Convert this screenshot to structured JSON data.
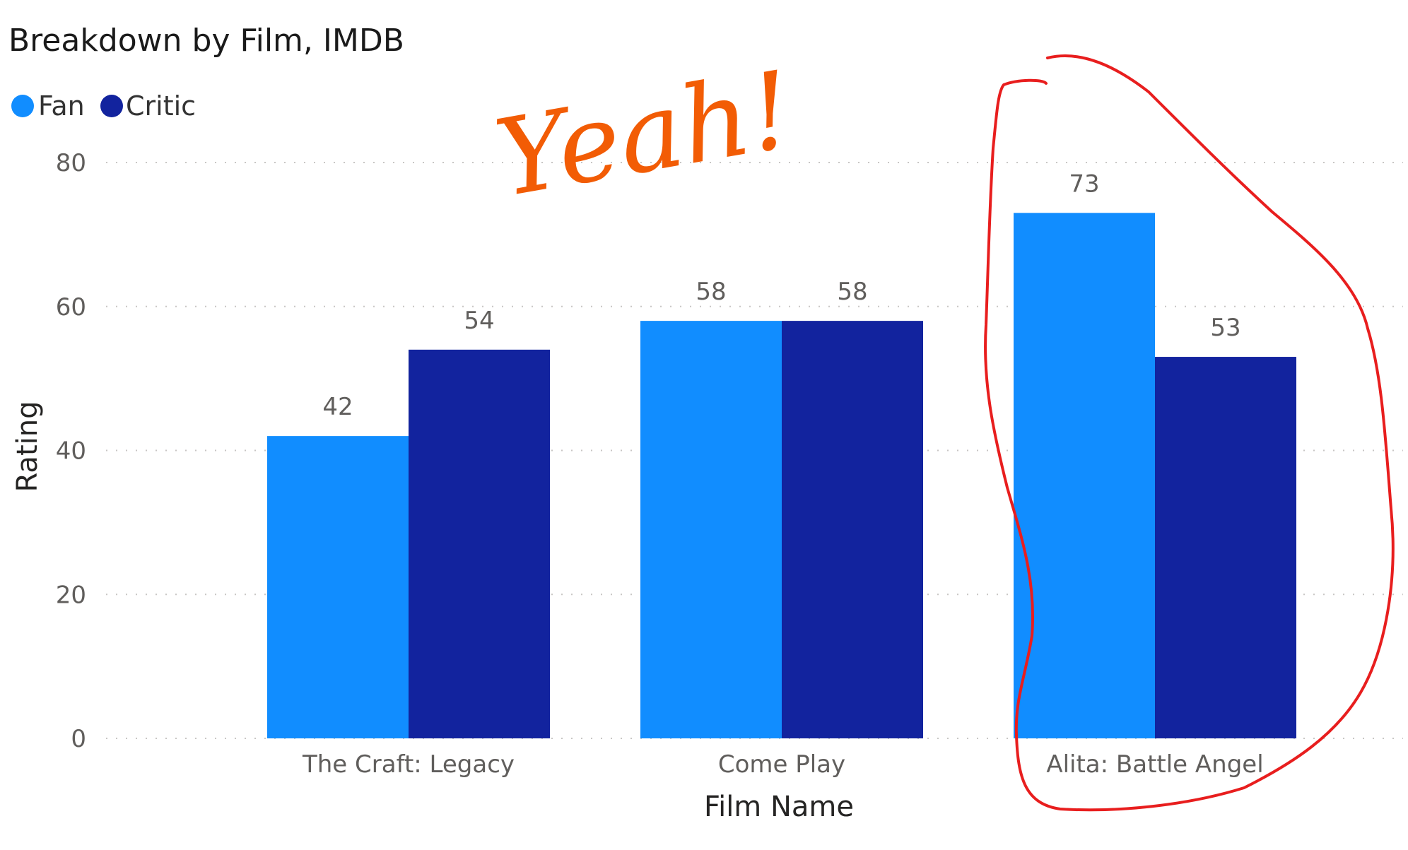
{
  "chart_data": {
    "type": "bar",
    "title": "Breakdown by Film, IMDB",
    "xlabel": "Film Name",
    "ylabel": "Rating",
    "ylim": [
      0,
      80
    ],
    "yticks": [
      0,
      20,
      40,
      60,
      80
    ],
    "grid": true,
    "legend_position": "top-left",
    "categories": [
      "The Craft: Legacy",
      "Come Play",
      "Alita: Battle Angel"
    ],
    "series": [
      {
        "name": "Fan",
        "values": [
          42,
          58,
          73
        ],
        "color": "#118dff"
      },
      {
        "name": "Critic",
        "values": [
          54,
          58,
          53
        ],
        "color": "#12239e"
      }
    ]
  },
  "annotation": {
    "text": "Yeah!",
    "text_color": "#f25c05",
    "circle_color": "#e81e1e",
    "circled_category": "Alita: Battle Angel"
  }
}
